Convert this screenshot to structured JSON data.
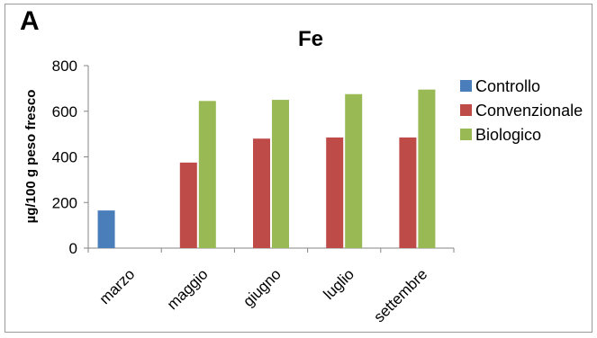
{
  "panel_label": "A",
  "chart_data": {
    "type": "bar",
    "title": "Fe",
    "xlabel": "",
    "ylabel": "µg/100 g peso fresco",
    "categories": [
      "marzo",
      "maggio",
      "giugno",
      "luglio",
      "settembre"
    ],
    "series": [
      {
        "name": "Controllo",
        "color": "#4a7ebb",
        "values": [
          165,
          null,
          null,
          null,
          null
        ]
      },
      {
        "name": "Convenzionale",
        "color": "#be4b48",
        "values": [
          null,
          375,
          480,
          485,
          485
        ]
      },
      {
        "name": "Biologico",
        "color": "#98b954",
        "values": [
          null,
          645,
          650,
          675,
          695
        ]
      }
    ],
    "ylim": [
      0,
      800
    ],
    "yticks": [
      0,
      200,
      400,
      600,
      800
    ],
    "grid": false,
    "legend_position": "right"
  }
}
